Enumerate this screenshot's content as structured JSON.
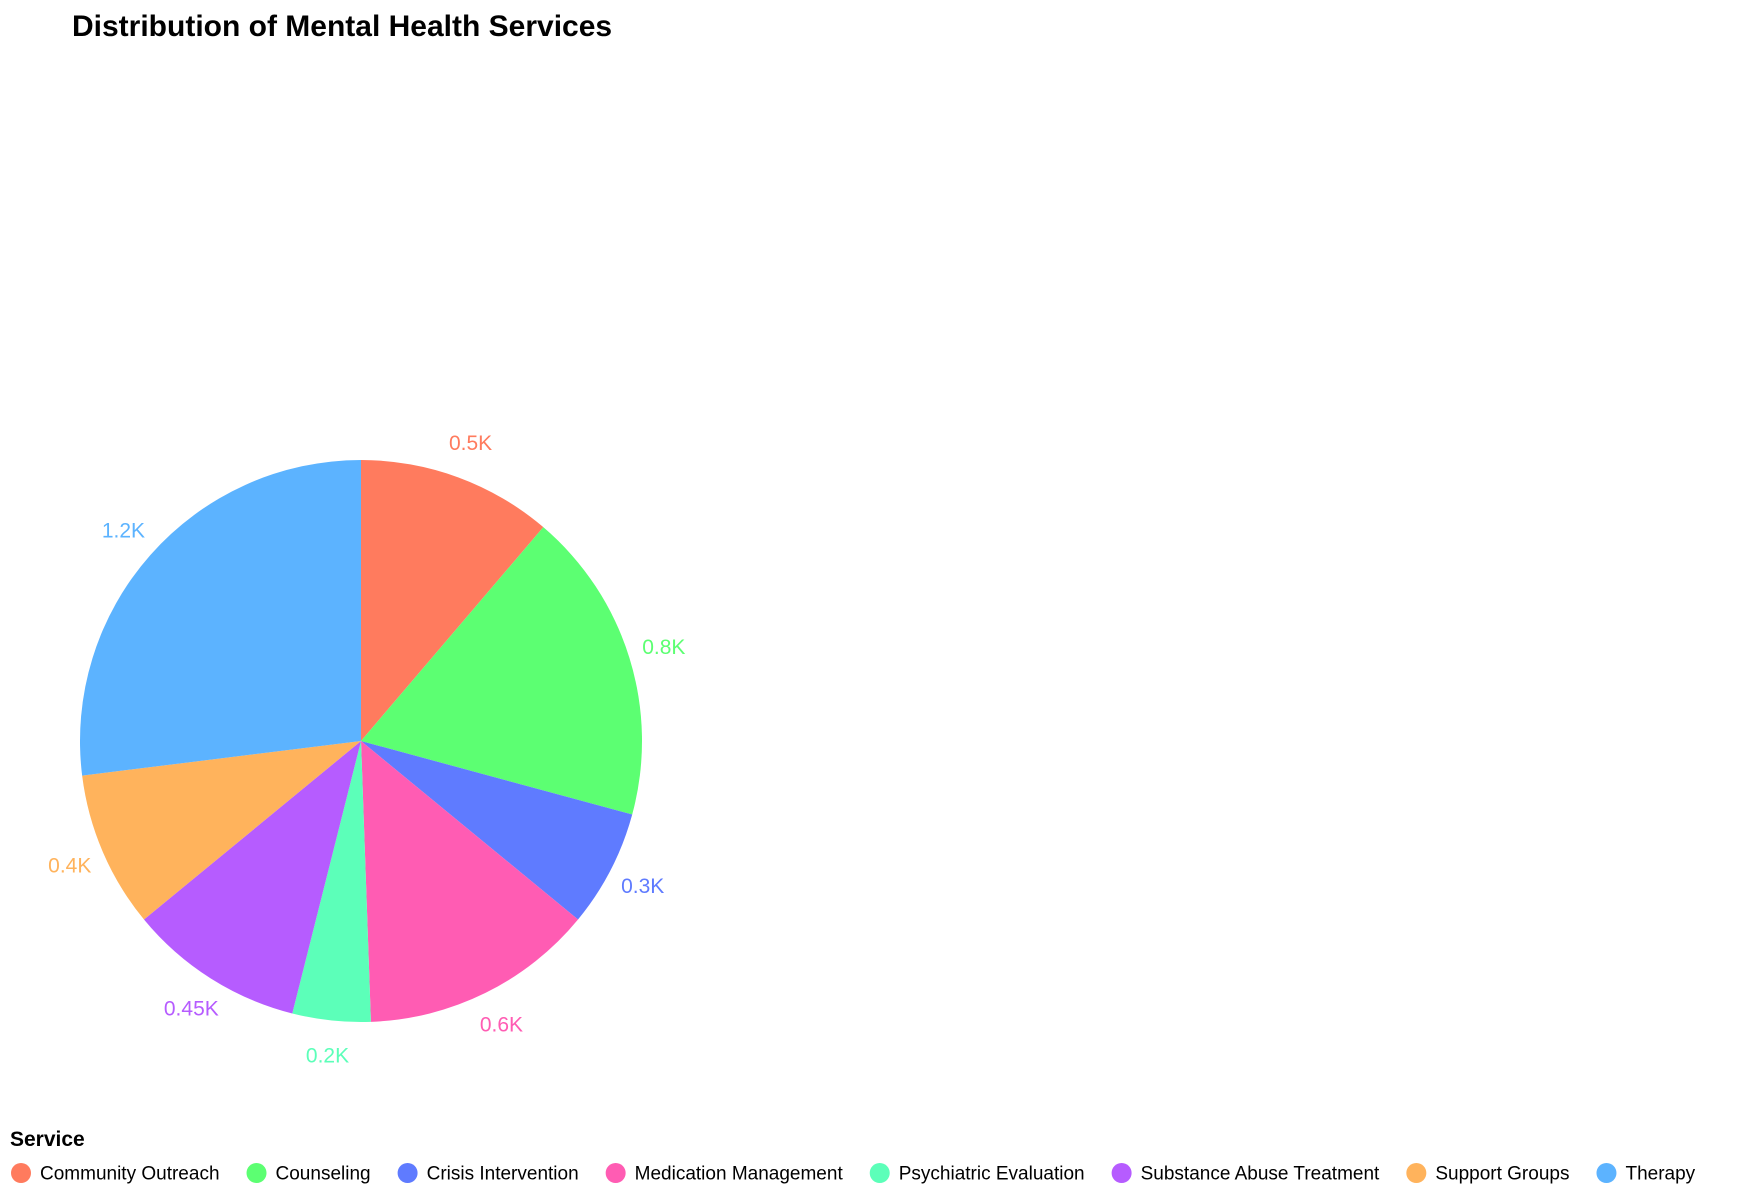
{
  "chart_data": {
    "type": "pie",
    "title": "Distribution of Mental Health Services",
    "legend_title": "Service",
    "legend_position": "bottom",
    "slices": [
      {
        "name": "Community Outreach",
        "value": 500,
        "label": "0.5K",
        "color": "#FF7B5E"
      },
      {
        "name": "Counseling",
        "value": 800,
        "label": "0.8K",
        "color": "#5CFF72"
      },
      {
        "name": "Crisis Intervention",
        "value": 300,
        "label": "0.3K",
        "color": "#5F7BFF"
      },
      {
        "name": "Medication Management",
        "value": 600,
        "label": "0.6K",
        "color": "#FF5CB3"
      },
      {
        "name": "Psychiatric Evaluation",
        "value": 200,
        "label": "0.2K",
        "color": "#5CFFB9"
      },
      {
        "name": "Substance Abuse Treatment",
        "value": 450,
        "label": "0.45K",
        "color": "#B65CFF"
      },
      {
        "name": "Support Groups",
        "value": 400,
        "label": "0.4K",
        "color": "#FFB35C"
      },
      {
        "name": "Therapy",
        "value": 1200,
        "label": "1.2K",
        "color": "#5CB3FF"
      }
    ]
  }
}
